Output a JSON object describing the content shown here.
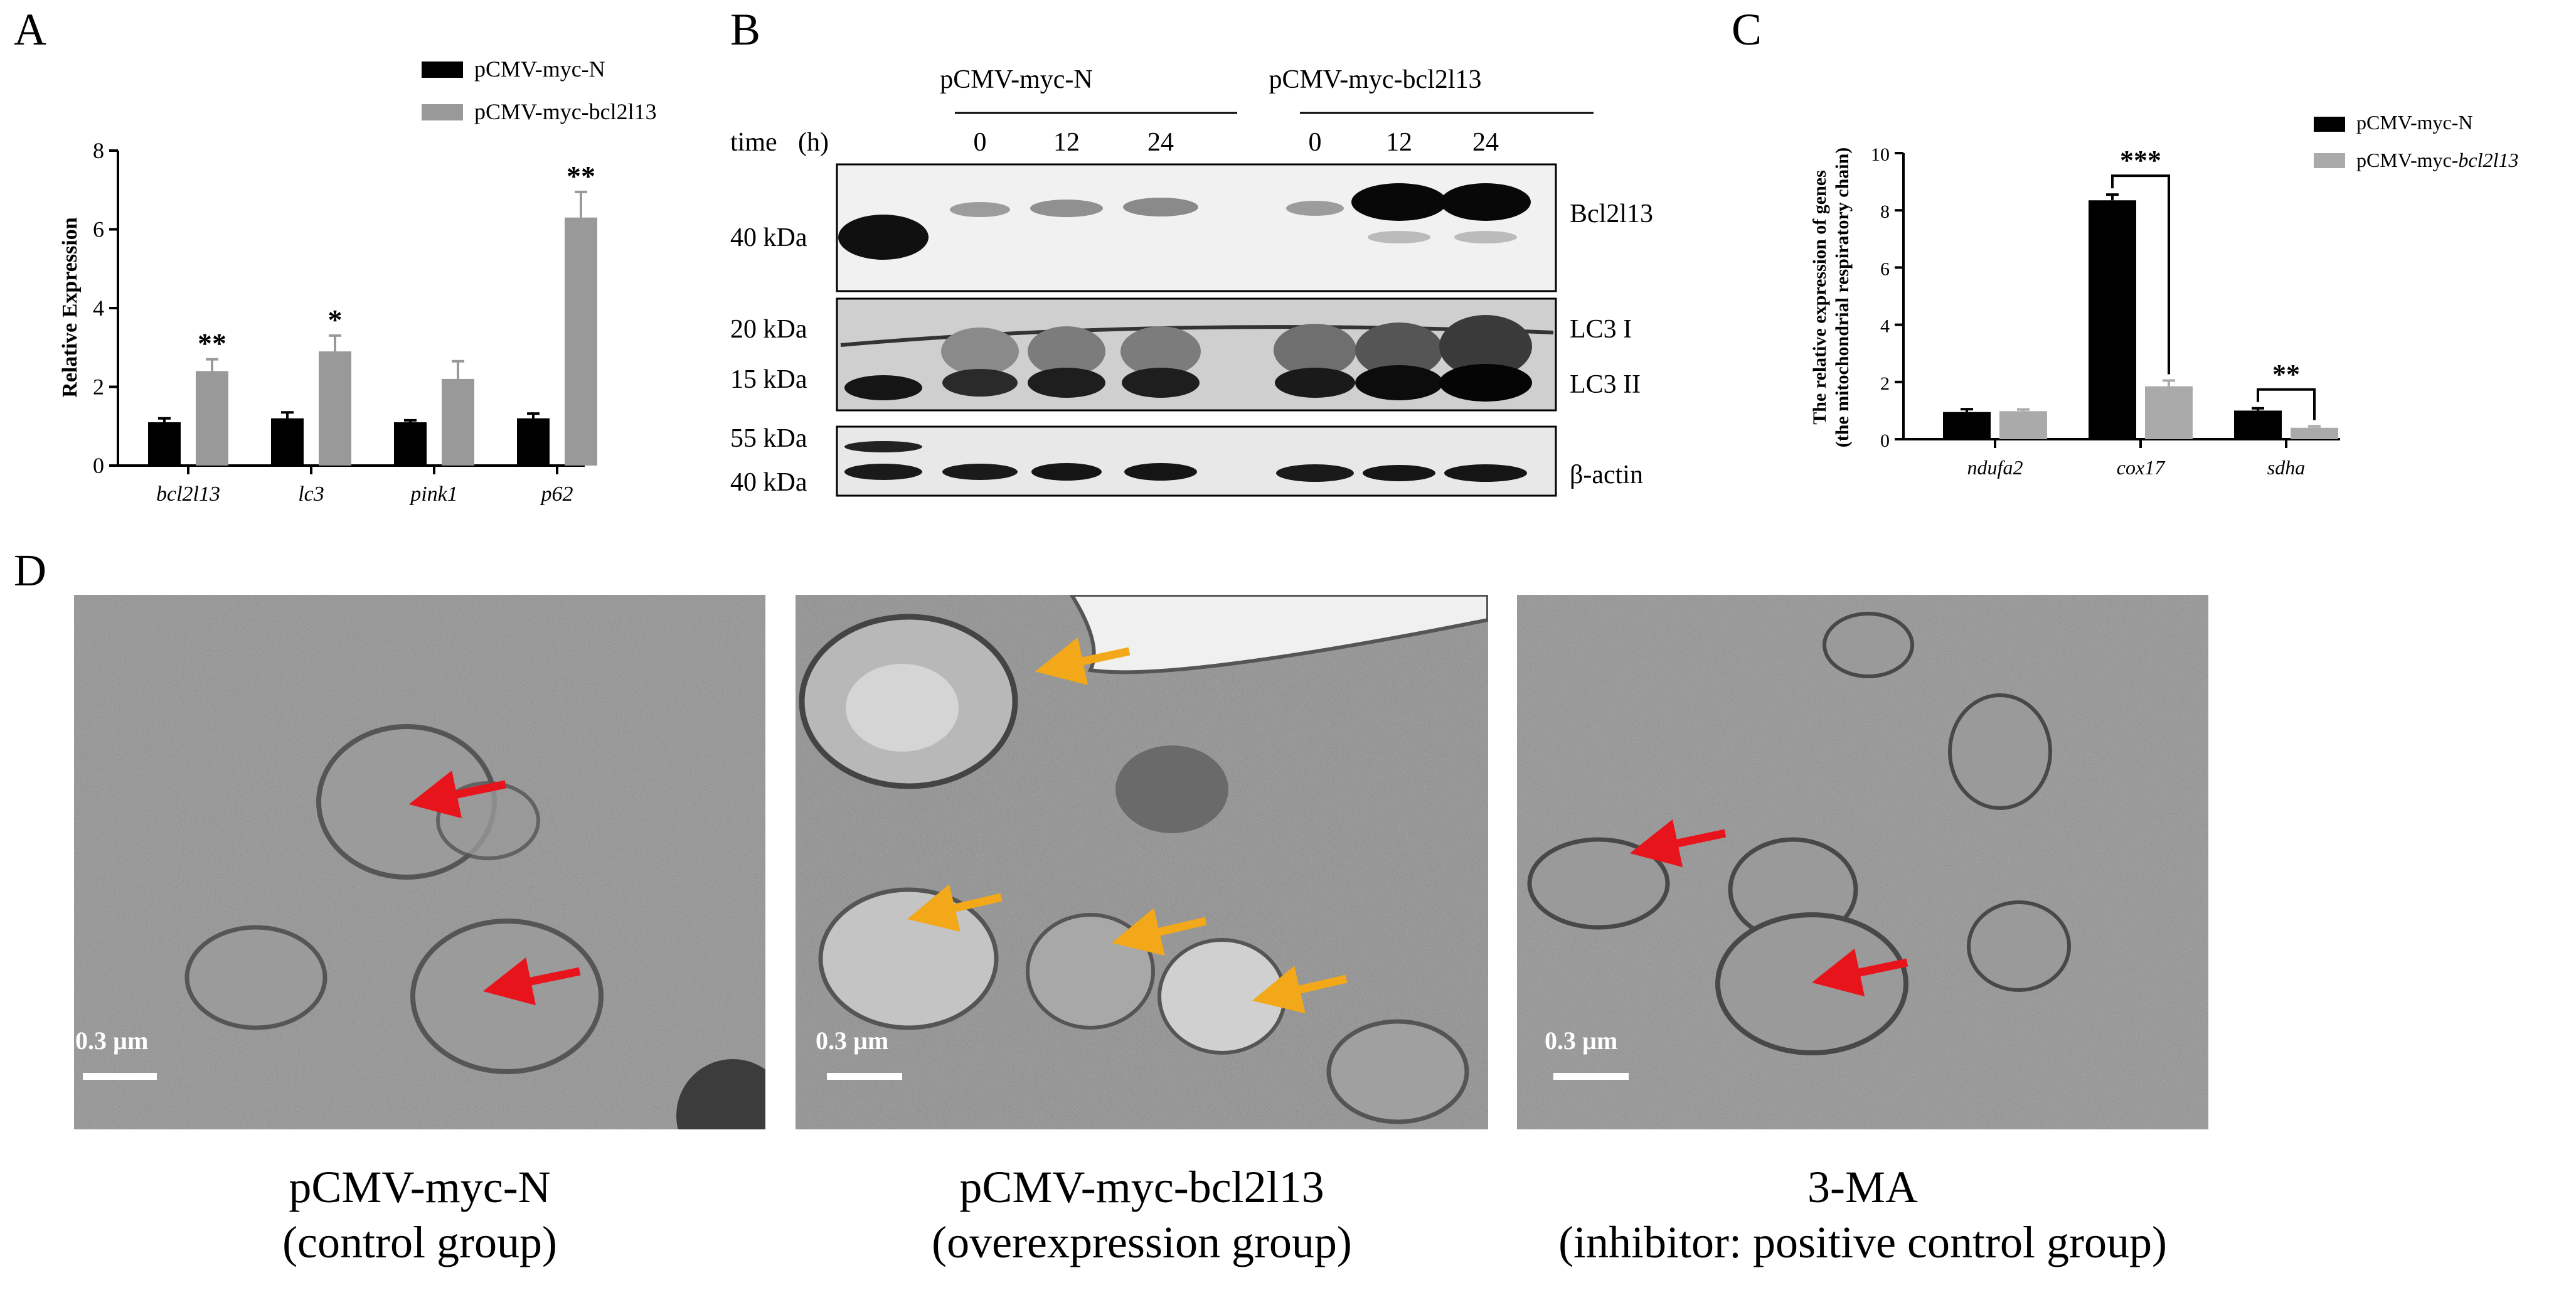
{
  "panels": {
    "A": {
      "letter": "A",
      "chart_data": {
        "type": "bar",
        "ylabel": "Relative Expression",
        "ylim": [
          0,
          8
        ],
        "yticks": [
          "0",
          "2",
          "4",
          "6",
          "8"
        ],
        "categories": [
          "bcl2l13",
          "lc3",
          "pink1",
          "p62"
        ],
        "series": [
          {
            "name": "pCMV-myc-N",
            "color": "#000000",
            "values": [
              1.1,
              1.2,
              1.1,
              1.2
            ],
            "errors": [
              0.1,
              0.15,
              0.05,
              0.12
            ]
          },
          {
            "name": "pCMV-myc-bcl2l13",
            "color": "#999999",
            "values": [
              2.4,
              2.9,
              2.2,
              6.3
            ],
            "errors": [
              0.3,
              0.4,
              0.45,
              0.65
            ]
          }
        ],
        "annotations": [
          "**",
          "*",
          "",
          "**"
        ],
        "legend": "top-right"
      }
    },
    "B": {
      "letter": "B",
      "groups": [
        "pCMV-myc-N",
        "pCMV-myc-bcl2l13"
      ],
      "time_label": "time",
      "time_unit": "(h)",
      "timepoints": [
        "0",
        "12",
        "24",
        "0",
        "12",
        "24"
      ],
      "blots": [
        {
          "label": "Bcl2l13",
          "markers": [
            "40 kDa"
          ]
        },
        {
          "label": "LC3 I",
          "label2": "LC3 II",
          "markers": [
            "20 kDa",
            "15 kDa"
          ]
        },
        {
          "label": "β-actin",
          "markers": [
            "55 kDa",
            "40 kDa"
          ]
        }
      ]
    },
    "C": {
      "letter": "C",
      "chart_data": {
        "type": "bar",
        "ylabel_line1": "The relative expression of genes",
        "ylabel_line2": "(the mitochondrial respiratory chain)",
        "ylim": [
          0,
          10
        ],
        "yticks": [
          "0",
          "2",
          "4",
          "6",
          "8",
          "10"
        ],
        "categories": [
          "ndufa2",
          "cox17",
          "sdha"
        ],
        "series": [
          {
            "name": "pCMV-myc-N",
            "color": "#000000",
            "values": [
              0.95,
              8.35,
              1.0
            ],
            "errors": [
              0.1,
              0.2,
              0.08
            ]
          },
          {
            "name_prefix": "pCMV-myc-",
            "name_italic": "bcl2l13",
            "color": "#aaaaaa",
            "values": [
              0.98,
              1.85,
              0.4
            ],
            "errors": [
              0.06,
              0.2,
              0.05
            ]
          }
        ],
        "annotations": [
          "",
          "***",
          "**"
        ],
        "legend": "top-right"
      }
    },
    "D": {
      "letter": "D",
      "images": [
        {
          "scale": "0.3 µm",
          "caption1": "pCMV-myc-N",
          "caption2": "(control group)"
        },
        {
          "scale": "0.3 µm",
          "caption1": "pCMV-myc-bcl2l13",
          "caption2": "(overexpression group)"
        },
        {
          "scale": "0.3 µm",
          "caption1": "3-MA",
          "caption2": "(inhibitor: positive control group)"
        }
      ],
      "arrow_colors": {
        "red": "#e8141c",
        "orange": "#f2a818"
      }
    }
  }
}
